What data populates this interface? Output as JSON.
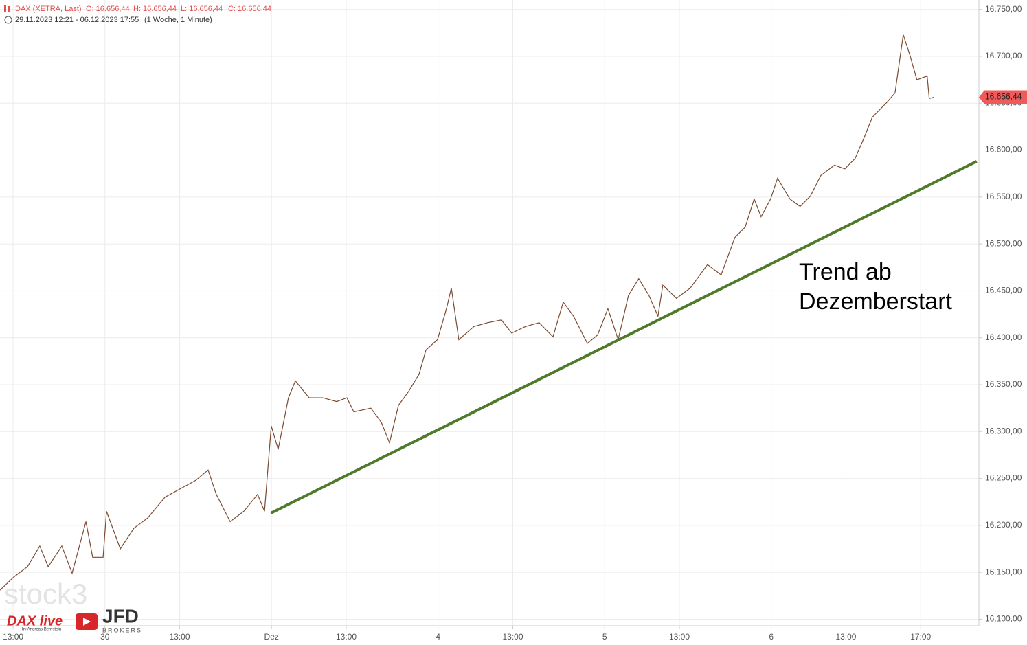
{
  "chart_data": {
    "type": "line",
    "title": "DAX (XETRA, Last)",
    "ohlc": [
      "O: 16.656,44",
      "H: 16.656,44",
      "L: 16.656,44",
      "C: 16.656,44"
    ],
    "subtitle": "29.11.2023 12:21 - 06.12.2023 17:55",
    "period": "(1 Woche, 1 Minute)",
    "series": [
      {
        "color": "#7a4a30",
        "x": [
          3.3,
          4.04,
          4.77,
          5.43,
          5.88,
          6.61,
          7.16,
          7.9,
          8.26,
          8.82,
          9.0,
          9.74,
          10.47,
          11.21,
          12.13,
          13.04,
          13.78,
          14.44,
          14.88,
          15.62,
          16.35,
          17.09,
          17.46,
          17.82,
          18.19,
          18.74,
          19.11,
          19.85,
          20.58,
          21.32,
          21.87,
          22.24,
          23.15,
          23.71,
          24.15,
          24.63,
          25.18,
          25.73,
          26.1,
          26.72,
          27.2,
          27.46,
          27.86,
          28.67,
          29.4,
          30.14,
          30.69,
          31.43,
          32.16,
          32.9,
          33.45,
          34.0,
          34.74,
          35.29,
          35.84,
          36.39,
          36.94,
          37.49,
          38.04,
          38.52,
          38.78,
          39.51,
          40.25,
          41.17,
          41.9,
          42.64,
          43.19,
          43.67,
          44.04,
          44.55,
          44.92,
          45.58,
          46.13,
          46.68,
          47.24,
          47.97,
          48.52,
          49.07,
          49.55,
          49.99,
          50.73,
          51.21,
          51.65,
          52.01,
          52.38,
          52.93,
          53.04,
          53.3
        ],
        "values": [
          16131,
          16145,
          16156,
          16178,
          16156,
          16178,
          16149,
          16204,
          16166,
          16166,
          16215,
          16175,
          16197,
          16208,
          16230,
          16240,
          16248,
          16259,
          16233,
          16204,
          16215,
          16233,
          16215,
          16306,
          16281,
          16336,
          16354,
          16336,
          16336,
          16332,
          16336,
          16321,
          16325,
          16310,
          16288,
          16328,
          16343,
          16361,
          16387,
          16398,
          16431,
          16453,
          16398,
          16412,
          16416,
          16419,
          16405,
          16412,
          16416,
          16401,
          16438,
          16423,
          16394,
          16403,
          16431,
          16398,
          16445,
          16463,
          16445,
          16423,
          16456,
          16442,
          16453,
          16478,
          16467,
          16507,
          16518,
          16548,
          16529,
          16548,
          16570,
          16548,
          16540,
          16551,
          16573,
          16584,
          16580,
          16591,
          16613,
          16635,
          16650,
          16661,
          16723,
          16701,
          16675,
          16679,
          16655,
          16656.44
        ]
      }
    ],
    "last": {
      "value": 16656.44,
      "label": "16.656,44",
      "color": "#f05a5a"
    },
    "trendline": {
      "x": [
        17.79,
        55.58
      ],
      "values": [
        16213,
        16588
      ],
      "color": "#4e7a2a"
    },
    "annotation": [
      "Trend ab",
      "Dezemberstart"
    ],
    "xlim": [
      3.3,
      55.7
    ],
    "ylim": [
      16093,
      16760
    ],
    "xticks": [
      {
        "value": 4,
        "label": "13:00"
      },
      {
        "value": 8.917,
        "label": "30"
      },
      {
        "value": 12.917,
        "label": "13:00"
      },
      {
        "value": 17.833,
        "label": "Dez"
      },
      {
        "value": 21.833,
        "label": "13:00"
      },
      {
        "value": 26.75,
        "label": "4"
      },
      {
        "value": 30.75,
        "label": "13:00"
      },
      {
        "value": 35.667,
        "label": "5"
      },
      {
        "value": 39.667,
        "label": "13:00"
      },
      {
        "value": 44.583,
        "label": "6"
      },
      {
        "value": 48.583,
        "label": "13:00"
      },
      {
        "value": 52.583,
        "label": "17:00"
      }
    ],
    "yticks": [
      {
        "value": 16100,
        "label": "16.100,00"
      },
      {
        "value": 16150,
        "label": "16.150,00"
      },
      {
        "value": 16200,
        "label": "16.200,00"
      },
      {
        "value": 16250,
        "label": "16.250,00"
      },
      {
        "value": 16300,
        "label": "16.300,00"
      },
      {
        "value": 16350,
        "label": "16.350,00"
      },
      {
        "value": 16400,
        "label": "16.400,00"
      },
      {
        "value": 16450,
        "label": "16.450,00"
      },
      {
        "value": 16500,
        "label": "16.500,00"
      },
      {
        "value": 16550,
        "label": "16.550,00"
      },
      {
        "value": 16600,
        "label": "16.600,00"
      },
      {
        "value": 16650,
        "label": "16.650,00"
      },
      {
        "value": 16700,
        "label": "16.700,00"
      },
      {
        "value": 16750,
        "label": "16.750,00"
      }
    ],
    "grid": true,
    "watermarks": {
      "brand": "stock3",
      "show": "DAX live",
      "author": "by Andreas Bernstein",
      "broker": "JFD",
      "broker_sub": "BROKERS"
    }
  }
}
